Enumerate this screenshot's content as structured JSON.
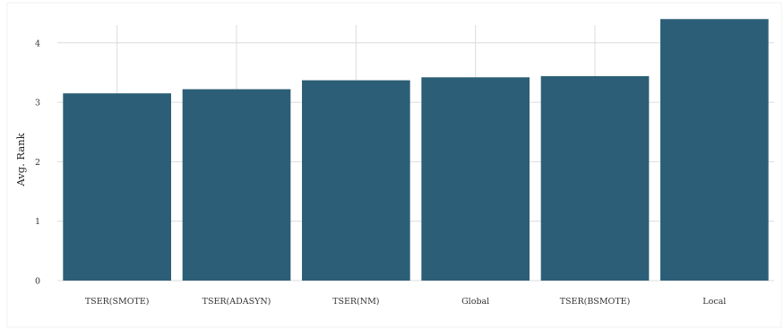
{
  "chart_data": {
    "type": "bar",
    "title": "",
    "xlabel": "",
    "ylabel": "Avg. Rank",
    "categories": [
      "TSER(SMOTE)",
      "TSER(ADASYN)",
      "TSER(NM)",
      "Global",
      "TSER(BSMOTE)",
      "Local"
    ],
    "values": [
      3.15,
      3.22,
      3.37,
      3.42,
      3.44,
      4.4
    ],
    "ylim": [
      0,
      4.6
    ],
    "yticks": [
      0,
      1,
      2,
      3,
      4
    ],
    "grid": true,
    "legend": "none",
    "bar_color": "#2c5f77",
    "grid_color": "#dcdcdc"
  }
}
